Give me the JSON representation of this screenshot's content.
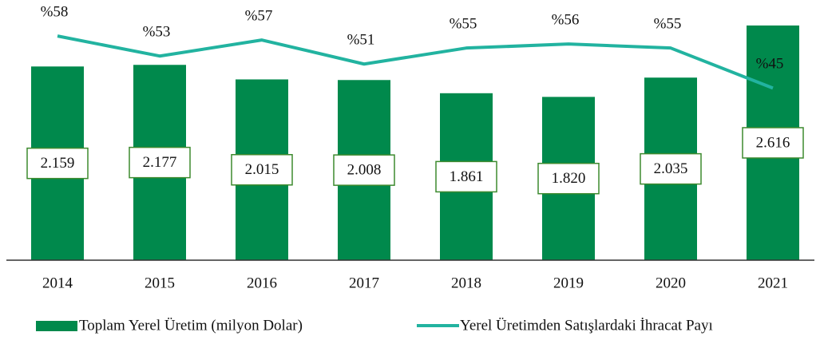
{
  "chart_data": {
    "type": "bar",
    "categories": [
      "2014",
      "2015",
      "2016",
      "2017",
      "2018",
      "2019",
      "2020",
      "2021"
    ],
    "ylim": [
      0,
      2900
    ],
    "y2lim": [
      2,
      67
    ],
    "legend": "bottom",
    "series": [
      {
        "name": "Toplam Yerel Üretim (milyon Dolar)",
        "type": "bar",
        "color": "#00894c",
        "values": [
          2159,
          2177,
          2015,
          2008,
          1861,
          1820,
          2035,
          2616
        ],
        "value_labels": [
          "2.159",
          "2.177",
          "2.015",
          "2.008",
          "1.861",
          "1.820",
          "2.035",
          "2.616"
        ]
      },
      {
        "name": "Yerel Üretimden Satışlardaki İhracat Payı",
        "type": "line",
        "axis": "y2",
        "color": "#22b3a0",
        "values": [
          58,
          53,
          57,
          51,
          55,
          56,
          55,
          45
        ],
        "value_labels": [
          "%58",
          "%53",
          "%57",
          "%51",
          "%55",
          "%56",
          "%55",
          "%45"
        ]
      }
    ]
  }
}
